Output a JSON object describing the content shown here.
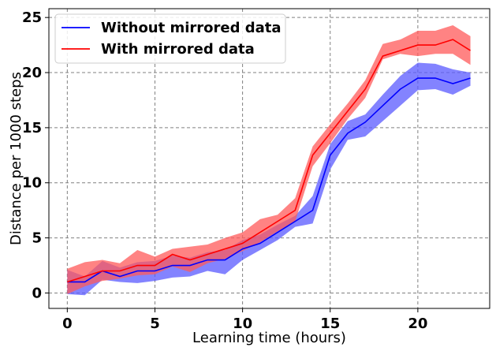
{
  "chart_data": {
    "type": "line",
    "xlabel": "Learning time (hours)",
    "ylabel": "Distance per 1000 steps",
    "xlim": [
      -1.05,
      24.1
    ],
    "ylim": [
      -1.4,
      25.8
    ],
    "xticks": [
      0,
      5,
      10,
      15,
      20
    ],
    "yticks": [
      0,
      5,
      10,
      15,
      20,
      25
    ],
    "grid": true,
    "legend_position": "top-left",
    "series": [
      {
        "name": "Without mirrored data",
        "color": "#0000ff",
        "fill_color": "#5a5aff",
        "x": [
          0,
          1,
          2,
          3,
          4,
          5,
          6,
          7,
          8,
          9,
          10,
          11,
          12,
          13,
          14,
          15,
          16,
          17,
          18,
          19,
          20,
          21,
          22,
          23
        ],
        "mean": [
          1.0,
          1.0,
          2.0,
          1.5,
          2.0,
          2.0,
          2.5,
          2.5,
          3.0,
          3.0,
          4.0,
          4.5,
          5.5,
          6.5,
          7.5,
          12.5,
          14.5,
          15.5,
          17.0,
          18.5,
          19.5,
          19.5,
          19.0,
          19.5
        ],
        "lower": [
          -0.1,
          -0.2,
          1.2,
          1.0,
          0.9,
          1.1,
          1.4,
          1.5,
          2.0,
          1.7,
          3.0,
          3.9,
          4.8,
          6.0,
          6.3,
          11.2,
          13.9,
          14.2,
          15.6,
          17.0,
          18.4,
          18.5,
          18.0,
          18.8
        ],
        "upper": [
          2.1,
          1.5,
          2.9,
          2.3,
          2.8,
          2.9,
          3.4,
          3.2,
          3.7,
          3.9,
          4.8,
          5.3,
          6.2,
          7.0,
          8.8,
          13.5,
          15.6,
          16.2,
          18.0,
          19.7,
          20.9,
          20.8,
          20.3,
          20.0
        ]
      },
      {
        "name": "With mirrored data",
        "color": "#ff0000",
        "fill_color": "#ff5a5a",
        "x": [
          0,
          1,
          2,
          3,
          4,
          5,
          6,
          7,
          8,
          9,
          10,
          11,
          12,
          13,
          14,
          15,
          16,
          17,
          18,
          19,
          20,
          21,
          22,
          23
        ],
        "mean": [
          1.0,
          1.5,
          2.0,
          2.0,
          2.5,
          2.5,
          3.5,
          3.0,
          3.5,
          4.0,
          4.5,
          5.5,
          6.5,
          7.5,
          12.5,
          14.5,
          16.5,
          18.5,
          21.5,
          22.0,
          22.5,
          22.5,
          23.0,
          22.0
        ],
        "lower": [
          -0.1,
          0.6,
          1.1,
          1.3,
          1.6,
          1.7,
          2.4,
          1.9,
          2.7,
          3.1,
          3.8,
          4.6,
          5.6,
          6.5,
          11.5,
          13.6,
          15.8,
          17.7,
          21.2,
          21.7,
          21.5,
          21.7,
          21.7,
          20.7
        ],
        "upper": [
          2.2,
          2.8,
          3.0,
          2.7,
          3.9,
          3.3,
          4.0,
          4.2,
          4.4,
          5.0,
          5.5,
          6.7,
          7.1,
          8.6,
          13.3,
          15.3,
          17.2,
          19.3,
          22.6,
          23.0,
          23.8,
          23.8,
          24.3,
          23.3
        ]
      }
    ]
  }
}
